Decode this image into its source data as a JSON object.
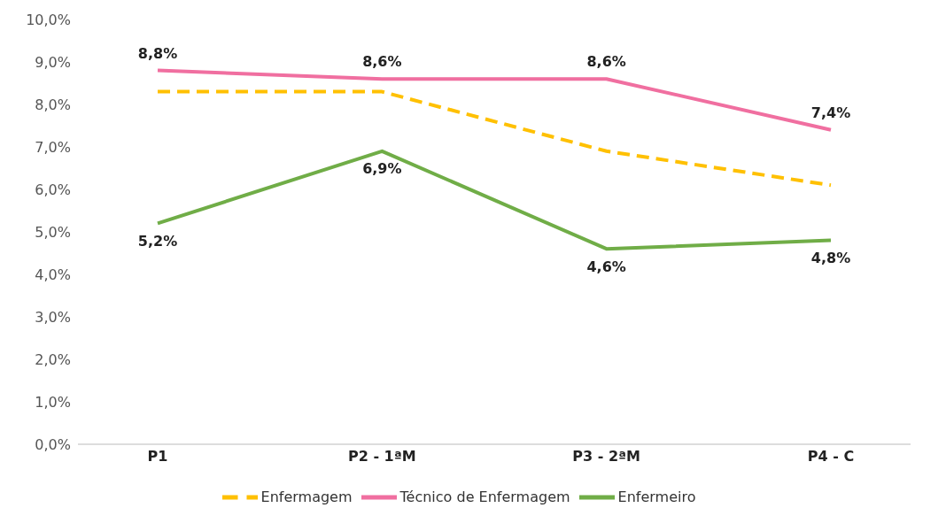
{
  "chart_data": {
    "type": "line",
    "categories": [
      "P1",
      "P2 - 1ªM",
      "P3 - 2ªM",
      "P4 - C"
    ],
    "series": [
      {
        "name": "Enfermagem",
        "color": "#ffc000",
        "line_style": "dashed",
        "values": [
          8.3,
          8.3,
          6.9,
          6.1
        ]
      },
      {
        "name": "Técnico de Enfermagem",
        "color": "#f06fa0",
        "line_style": "solid",
        "values": [
          8.8,
          8.6,
          8.6,
          7.4
        ],
        "value_labels": [
          "8,8%",
          "8,6%",
          "8,6%",
          "7,4%"
        ]
      },
      {
        "name": "Enfermeiro",
        "color": "#70ad47",
        "line_style": "solid",
        "values": [
          5.2,
          6.9,
          4.6,
          4.8
        ],
        "value_labels": [
          "5,2%",
          "6,9%",
          "4,6%",
          "4,8%"
        ]
      }
    ],
    "ylim": [
      0,
      10
    ],
    "yticks": [
      {
        "value": 0,
        "label": "0,0%"
      },
      {
        "value": 1,
        "label": "1,0%"
      },
      {
        "value": 2,
        "label": "2,0%"
      },
      {
        "value": 3,
        "label": "3,0%"
      },
      {
        "value": 4,
        "label": "4,0%"
      },
      {
        "value": 5,
        "label": "5,0%"
      },
      {
        "value": 6,
        "label": "6,0%"
      },
      {
        "value": 7,
        "label": "7,0%"
      },
      {
        "value": 8,
        "label": "8,0%"
      },
      {
        "value": 9,
        "label": "9,0%"
      },
      {
        "value": 10,
        "label": "10,0%"
      }
    ],
    "grid": false,
    "legend": "bottom",
    "marker": "none"
  }
}
